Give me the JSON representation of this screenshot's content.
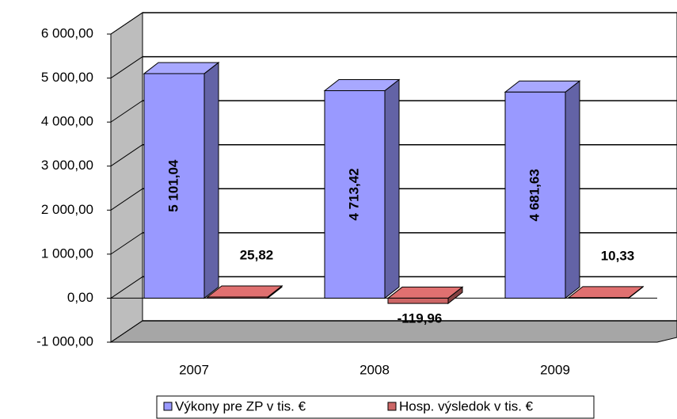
{
  "chart_data": {
    "type": "bar3d",
    "categories": [
      "2007",
      "2008",
      "2009"
    ],
    "series": [
      {
        "name": "Výkony pre ZP v tis. €",
        "color": "#9999ff",
        "values": [
          5101.04,
          4713.42,
          4681.63
        ],
        "value_labels": [
          "5 101,04",
          "4 713,42",
          "4 681,63"
        ]
      },
      {
        "name": "Hosp. výsledok v  tis. €",
        "color": "#cc6666",
        "values": [
          25.82,
          -119.96,
          10.33
        ],
        "value_labels": [
          "25,82",
          "-119,96",
          "10,33"
        ]
      }
    ],
    "ylim": [
      -1000,
      6000
    ],
    "yticks": [
      {
        "value": -1000,
        "label": "-1 000,00"
      },
      {
        "value": 0,
        "label": "0,00"
      },
      {
        "value": 1000,
        "label": "1 000,00"
      },
      {
        "value": 2000,
        "label": "2 000,00"
      },
      {
        "value": 3000,
        "label": "3 000,00"
      },
      {
        "value": 4000,
        "label": "4 000,00"
      },
      {
        "value": 5000,
        "label": "5 000,00"
      },
      {
        "value": 6000,
        "label": "6 000,00"
      }
    ],
    "grid": true,
    "legend": "bottom"
  }
}
